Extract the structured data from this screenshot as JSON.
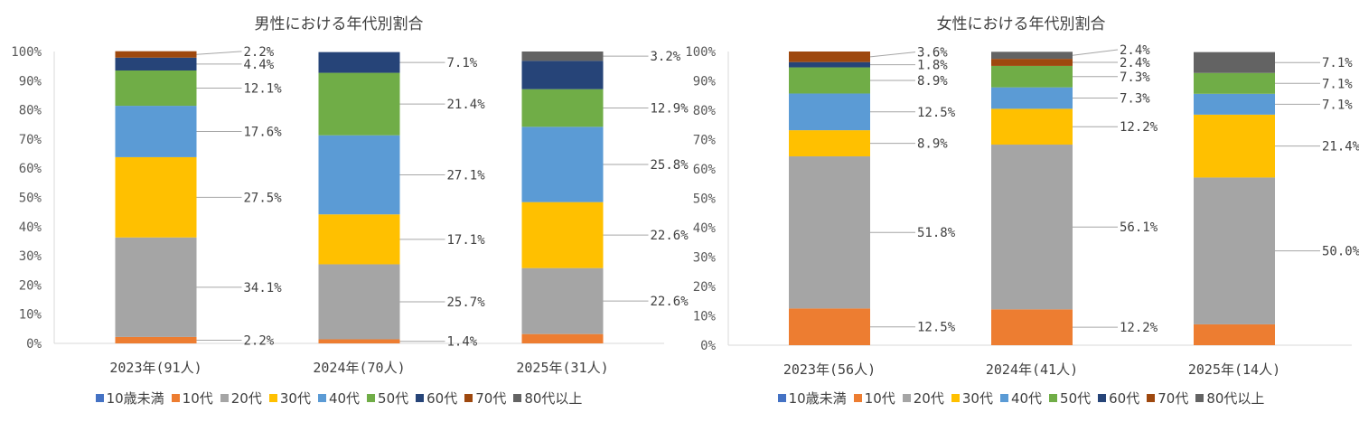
{
  "chart_data": [
    {
      "type": "bar",
      "stacked": true,
      "title": "男性における年代別割合",
      "categories": [
        "2023年(91人)",
        "2024年(70人)",
        "2025年(31人)"
      ],
      "ylim": [
        0,
        100
      ],
      "yticks": [
        "0%",
        "10%",
        "20%",
        "30%",
        "40%",
        "50%",
        "60%",
        "70%",
        "80%",
        "90%",
        "100%"
      ],
      "grid": false,
      "legend_position": "bottom",
      "series": [
        {
          "name": "10歳未満",
          "color": "#4472C4",
          "values": [
            0,
            0,
            0
          ],
          "labels": [
            "",
            "",
            ""
          ]
        },
        {
          "name": "10代",
          "color": "#ED7D31",
          "values": [
            2.2,
            1.4,
            3.2
          ],
          "labels": [
            "2.2%",
            "1.4%",
            ""
          ]
        },
        {
          "name": "20代",
          "color": "#A5A5A5",
          "values": [
            34.1,
            25.7,
            22.6
          ],
          "labels": [
            "34.1%",
            "25.7%",
            "22.6%"
          ]
        },
        {
          "name": "30代",
          "color": "#FFC000",
          "values": [
            27.5,
            17.1,
            22.6
          ],
          "labels": [
            "27.5%",
            "17.1%",
            "22.6%"
          ]
        },
        {
          "name": "40代",
          "color": "#5B9BD5",
          "values": [
            17.6,
            27.1,
            25.8
          ],
          "labels": [
            "17.6%",
            "27.1%",
            "25.8%"
          ]
        },
        {
          "name": "50代",
          "color": "#70AD47",
          "values": [
            12.1,
            21.4,
            12.9
          ],
          "labels": [
            "12.1%",
            "21.4%",
            "12.9%"
          ]
        },
        {
          "name": "60代",
          "color": "#264478",
          "values": [
            4.4,
            7.1,
            9.7
          ],
          "labels": [
            "4.4%",
            "7.1%",
            ""
          ]
        },
        {
          "name": "70代",
          "color": "#9E480E",
          "values": [
            2.2,
            0,
            0
          ],
          "labels": [
            "2.2%",
            "",
            ""
          ]
        },
        {
          "name": "80代以上",
          "color": "#636363",
          "values": [
            0,
            0,
            3.2
          ],
          "labels": [
            "",
            "",
            "3.2%"
          ]
        }
      ]
    },
    {
      "type": "bar",
      "stacked": true,
      "title": "女性における年代別割合",
      "categories": [
        "2023年(56人)",
        "2024年(41人)",
        "2025年(14人)"
      ],
      "ylim": [
        0,
        100
      ],
      "yticks": [
        "0%",
        "10%",
        "20%",
        "30%",
        "40%",
        "50%",
        "60%",
        "70%",
        "80%",
        "90%",
        "100%"
      ],
      "grid": false,
      "legend_position": "bottom",
      "series": [
        {
          "name": "10歳未満",
          "color": "#4472C4",
          "values": [
            0,
            0,
            0
          ],
          "labels": [
            "",
            "",
            ""
          ]
        },
        {
          "name": "10代",
          "color": "#ED7D31",
          "values": [
            12.5,
            12.2,
            7.1
          ],
          "labels": [
            "12.5%",
            "12.2%",
            ""
          ]
        },
        {
          "name": "20代",
          "color": "#A5A5A5",
          "values": [
            51.8,
            56.1,
            50.0
          ],
          "labels": [
            "51.8%",
            "56.1%",
            "50.0%"
          ]
        },
        {
          "name": "30代",
          "color": "#FFC000",
          "values": [
            8.9,
            12.2,
            21.4
          ],
          "labels": [
            "8.9%",
            "12.2%",
            "21.4%"
          ]
        },
        {
          "name": "40代",
          "color": "#5B9BD5",
          "values": [
            12.5,
            7.3,
            7.1
          ],
          "labels": [
            "12.5%",
            "7.3%",
            "7.1%"
          ]
        },
        {
          "name": "50代",
          "color": "#70AD47",
          "values": [
            8.9,
            7.3,
            7.1
          ],
          "labels": [
            "8.9%",
            "7.3%",
            "7.1%"
          ]
        },
        {
          "name": "60代",
          "color": "#264478",
          "values": [
            1.8,
            0,
            0
          ],
          "labels": [
            "1.8%",
            "",
            ""
          ]
        },
        {
          "name": "70代",
          "color": "#9E480E",
          "values": [
            3.6,
            2.4,
            0
          ],
          "labels": [
            "3.6%",
            "2.4%",
            ""
          ]
        },
        {
          "name": "80代以上",
          "color": "#636363",
          "values": [
            0,
            2.4,
            7.1
          ],
          "labels": [
            "",
            "2.4%",
            "7.1%"
          ]
        }
      ]
    }
  ]
}
